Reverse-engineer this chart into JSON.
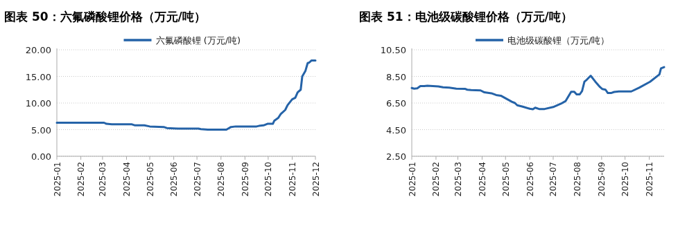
{
  "chart_data": [
    {
      "type": "line",
      "title": "图表 50：六氟磷酸锂价格（万元/吨）",
      "legend": "top",
      "grid": "y",
      "marker": "none",
      "line_style": "solid",
      "ylim": [
        0,
        20
      ],
      "yticks": [
        {
          "value": 0,
          "label": "0.00"
        },
        {
          "value": 5,
          "label": "5.00"
        },
        {
          "value": 10,
          "label": "10.00"
        },
        {
          "value": 15,
          "label": "15.00"
        },
        {
          "value": 20,
          "label": "20.00"
        }
      ],
      "xlim": [
        "2025-01-01",
        "2025-12-01"
      ],
      "xticks": [
        {
          "value": "2025-01-01",
          "label": "2025-01"
        },
        {
          "value": "2025-02-01",
          "label": "2025-02"
        },
        {
          "value": "2025-03-01",
          "label": "2025-03"
        },
        {
          "value": "2025-04-01",
          "label": "2025-04"
        },
        {
          "value": "2025-05-01",
          "label": "2025-05"
        },
        {
          "value": "2025-06-01",
          "label": "2025-06"
        },
        {
          "value": "2025-07-01",
          "label": "2025-07"
        },
        {
          "value": "2025-08-01",
          "label": "2025-08"
        },
        {
          "value": "2025-09-01",
          "label": "2025-09"
        },
        {
          "value": "2025-10-01",
          "label": "2025-10"
        },
        {
          "value": "2025-11-01",
          "label": "2025-11"
        },
        {
          "value": "2025-12-01",
          "label": "2025-12"
        }
      ],
      "x": [
        "2025-01-01",
        "2025-03-03",
        "2025-03-06",
        "2025-03-13",
        "2025-04-08",
        "2025-04-12",
        "2025-04-24",
        "2025-05-01",
        "2025-05-19",
        "2025-05-23",
        "2025-06-06",
        "2025-07-03",
        "2025-07-06",
        "2025-07-15",
        "2025-08-08",
        "2025-08-14",
        "2025-08-20",
        "2025-09-16",
        "2025-09-19",
        "2025-09-25",
        "2025-09-30",
        "2025-10-07",
        "2025-10-09",
        "2025-10-14",
        "2025-10-17",
        "2025-10-23",
        "2025-10-26",
        "2025-11-01",
        "2025-11-05",
        "2025-11-08",
        "2025-11-12",
        "2025-11-14",
        "2025-11-18",
        "2025-11-21",
        "2025-11-23",
        "2025-11-26",
        "2025-12-01"
      ],
      "series": [
        {
          "name": "六氟磷酸锂 (万元/吨)",
          "color": "#2563a8",
          "values": [
            6.3,
            6.3,
            6.1,
            6.0,
            6.0,
            5.8,
            5.8,
            5.6,
            5.5,
            5.3,
            5.2,
            5.2,
            5.1,
            5.0,
            5.0,
            5.5,
            5.6,
            5.6,
            5.7,
            5.8,
            6.1,
            6.1,
            6.7,
            7.2,
            7.9,
            8.7,
            9.6,
            10.7,
            11.0,
            12.0,
            12.5,
            15.0,
            16.0,
            17.5,
            17.6,
            18.0,
            18.0
          ]
        }
      ]
    },
    {
      "type": "line",
      "title": "图表 51：电池级碳酸锂价格（万元/吨）",
      "legend": "top",
      "grid": "y",
      "marker": "none",
      "line_style": "solid",
      "ylim": [
        2.5,
        10.5
      ],
      "yticks": [
        {
          "value": 2.5,
          "label": "2.50"
        },
        {
          "value": 4.5,
          "label": "4.50"
        },
        {
          "value": 6.5,
          "label": "6.50"
        },
        {
          "value": 8.5,
          "label": "8.50"
        },
        {
          "value": 10.5,
          "label": "10.50"
        }
      ],
      "xlim": [
        "2025-01-01",
        "2025-11-20"
      ],
      "xticks": [
        {
          "value": "2025-01-01",
          "label": "2025-01"
        },
        {
          "value": "2025-02-01",
          "label": "2025-02"
        },
        {
          "value": "2025-03-01",
          "label": "2025-03"
        },
        {
          "value": "2025-04-01",
          "label": "2025-04"
        },
        {
          "value": "2025-05-01",
          "label": "2025-05"
        },
        {
          "value": "2025-06-01",
          "label": "2025-06"
        },
        {
          "value": "2025-07-01",
          "label": "2025-07"
        },
        {
          "value": "2025-08-01",
          "label": "2025-08"
        },
        {
          "value": "2025-09-01",
          "label": "2025-09"
        },
        {
          "value": "2025-10-01",
          "label": "2025-10"
        },
        {
          "value": "2025-11-01",
          "label": "2025-11"
        }
      ],
      "x": [
        "2025-01-01",
        "2025-01-04",
        "2025-01-08",
        "2025-01-12",
        "2025-01-17",
        "2025-01-21",
        "2025-02-04",
        "2025-02-10",
        "2025-02-18",
        "2025-02-27",
        "2025-03-10",
        "2025-03-13",
        "2025-03-18",
        "2025-03-30",
        "2025-04-04",
        "2025-04-13",
        "2025-04-19",
        "2025-04-25",
        "2025-05-09",
        "2025-05-13",
        "2025-05-16",
        "2025-05-23",
        "2025-06-01",
        "2025-06-05",
        "2025-06-08",
        "2025-06-13",
        "2025-06-20",
        "2025-07-01",
        "2025-07-11",
        "2025-07-17",
        "2025-07-24",
        "2025-07-28",
        "2025-07-31",
        "2025-08-04",
        "2025-08-07",
        "2025-08-10",
        "2025-08-13",
        "2025-08-18",
        "2025-08-24",
        "2025-08-30",
        "2025-09-02",
        "2025-09-06",
        "2025-09-09",
        "2025-09-13",
        "2025-09-17",
        "2025-09-23",
        "2025-10-09",
        "2025-10-19",
        "2025-11-02",
        "2025-11-14",
        "2025-11-16",
        "2025-11-20"
      ],
      "series": [
        {
          "name": "电池级碳酸锂（万元/吨）",
          "color": "#2563a8",
          "values": [
            7.63,
            7.58,
            7.6,
            7.77,
            7.77,
            7.8,
            7.75,
            7.68,
            7.65,
            7.58,
            7.57,
            7.5,
            7.47,
            7.45,
            7.3,
            7.23,
            7.1,
            7.05,
            6.6,
            6.5,
            6.33,
            6.23,
            6.07,
            6.03,
            6.15,
            6.05,
            6.05,
            6.2,
            6.45,
            6.65,
            7.35,
            7.35,
            7.15,
            7.15,
            7.4,
            8.1,
            8.25,
            8.55,
            8.1,
            7.7,
            7.55,
            7.5,
            7.25,
            7.25,
            7.33,
            7.37,
            7.37,
            7.65,
            8.1,
            8.65,
            9.1,
            9.2
          ]
        }
      ]
    }
  ]
}
